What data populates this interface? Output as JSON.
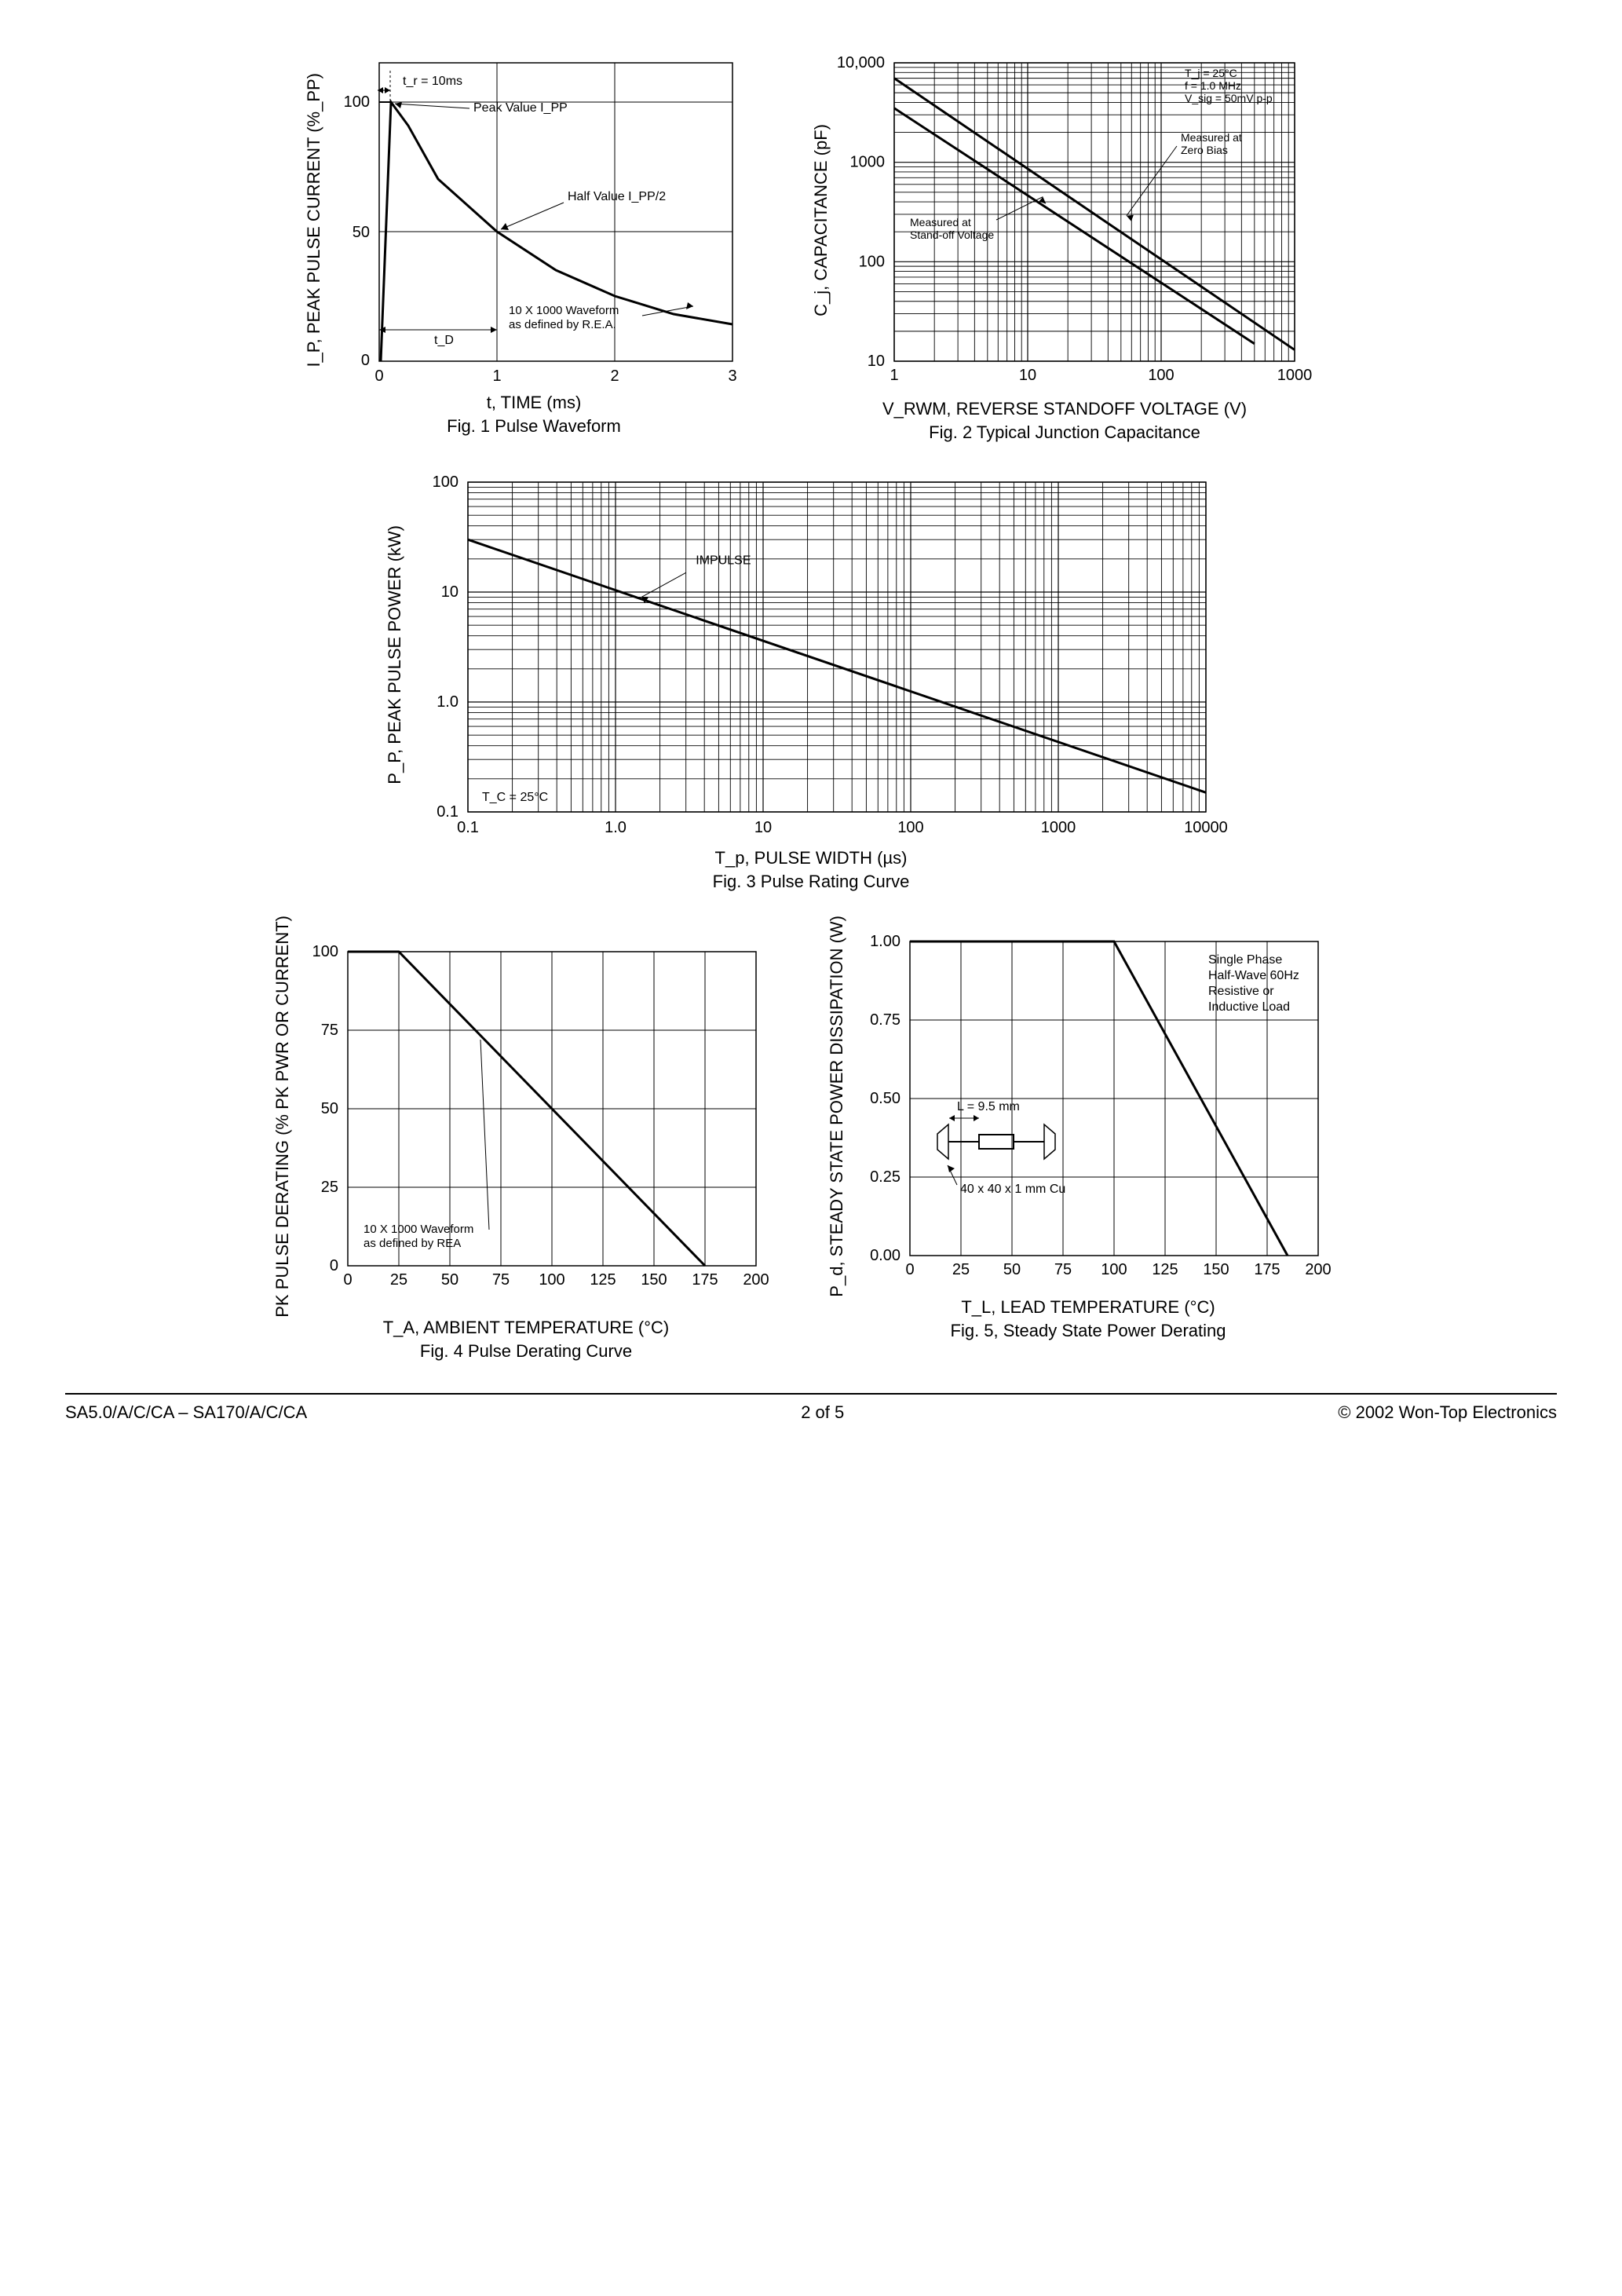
{
  "fig1": {
    "ylabel": "I_P, PEAK PULSE CURRENT (%_PP)",
    "xlabel": "t, TIME (ms)",
    "caption": "Fig. 1  Pulse Waveform",
    "xlim": [
      0,
      3
    ],
    "xticks": [
      0,
      1,
      2,
      3
    ],
    "ylim": [
      0,
      115
    ],
    "yticks": [
      0,
      50,
      100
    ],
    "pulse_path": [
      [
        0,
        0
      ],
      [
        0.1,
        100
      ],
      [
        0.25,
        90
      ],
      [
        0.5,
        70
      ],
      [
        1.0,
        50
      ],
      [
        1.5,
        35
      ],
      [
        2.0,
        25
      ],
      [
        2.5,
        18
      ],
      [
        3.0,
        14
      ]
    ],
    "annot1": "t_r = 10ms",
    "annot2": "Peak Value I_PP",
    "annot3": "Half Value I_PP/2",
    "annot4": "10 X 1000 Waveform as defined by R.E.A.",
    "annot5": "t_D"
  },
  "fig2": {
    "ylabel": "C_j, CAPACITANCE (pF)",
    "xlabel": "V_RWM, REVERSE STANDOFF VOLTAGE (V)",
    "caption": "Fig. 2 Typical Junction Capacitance",
    "xlim": [
      1,
      1000
    ],
    "ylim": [
      10,
      10000
    ],
    "xticks": [
      1,
      10,
      100,
      1000
    ],
    "yticks": [
      10,
      100,
      1000,
      10000
    ],
    "line1": [
      [
        1,
        7000
      ],
      [
        1000,
        13
      ]
    ],
    "line2": [
      [
        1,
        3500
      ],
      [
        500,
        15
      ]
    ],
    "note1": "T_j = 25°C\nf = 1.0 MHz\nV_sig = 50mV p-p",
    "note2": "Measured at Zero Bias",
    "note3": "Measured at Stand-off Voltage"
  },
  "fig3": {
    "ylabel": "P_P, PEAK PULSE POWER (kW)",
    "xlabel": "T_p, PULSE WIDTH (µs)",
    "caption": "Fig. 3 Pulse Rating Curve",
    "xlim": [
      0.1,
      10000
    ],
    "ylim": [
      0.1,
      100
    ],
    "xticks": [
      0.1,
      1.0,
      10,
      100,
      1000,
      10000
    ],
    "yticks": [
      0.1,
      1.0,
      10,
      100
    ],
    "line": [
      [
        0.1,
        30
      ],
      [
        10000,
        0.15
      ]
    ],
    "note1": "IMPULSE",
    "note2": "T_C = 25°C"
  },
  "fig4": {
    "ylabel": "PK PULSE DERATING (% PK PWR OR CURRENT)",
    "xlabel": "T_A, AMBIENT TEMPERATURE (°C)",
    "caption": "Fig. 4  Pulse Derating Curve",
    "xlim": [
      0,
      200
    ],
    "ylim": [
      0,
      100
    ],
    "xticks": [
      0,
      25,
      50,
      75,
      100,
      125,
      150,
      175,
      200
    ],
    "yticks": [
      0,
      25,
      50,
      75,
      100
    ],
    "line": [
      [
        0,
        100
      ],
      [
        25,
        100
      ],
      [
        175,
        0
      ]
    ],
    "note": "10 X 1000 Waveform as defined by REA"
  },
  "fig5": {
    "ylabel": "P_d, STEADY STATE POWER DISSIPATION (W)",
    "xlabel": "T_L, LEAD TEMPERATURE (°C)",
    "caption": "Fig. 5, Steady State Power Derating",
    "xlim": [
      0,
      200
    ],
    "ylim": [
      0,
      1.0
    ],
    "xticks": [
      0,
      25,
      50,
      75,
      100,
      125,
      150,
      175,
      200
    ],
    "yticks": [
      0,
      0.25,
      0.5,
      0.75,
      1.0
    ],
    "line": [
      [
        0,
        1.0
      ],
      [
        100,
        1.0
      ],
      [
        185,
        0
      ]
    ],
    "note1": "Single Phase Half-Wave 60Hz Resistive or Inductive Load",
    "note2": "L = 9.5 mm",
    "note3": "40 x 40 x 1 mm Cu"
  },
  "footer": {
    "left": "SA5.0/A/C/CA – SA170/A/C/CA",
    "center": "2  of  5",
    "right": "© 2002 Won-Top Electronics"
  },
  "style": {
    "stroke": "#000000",
    "line_width": 2,
    "grid_width": 1.2,
    "font_size_tick": 20,
    "font_size_note": 17,
    "bg": "#ffffff"
  }
}
